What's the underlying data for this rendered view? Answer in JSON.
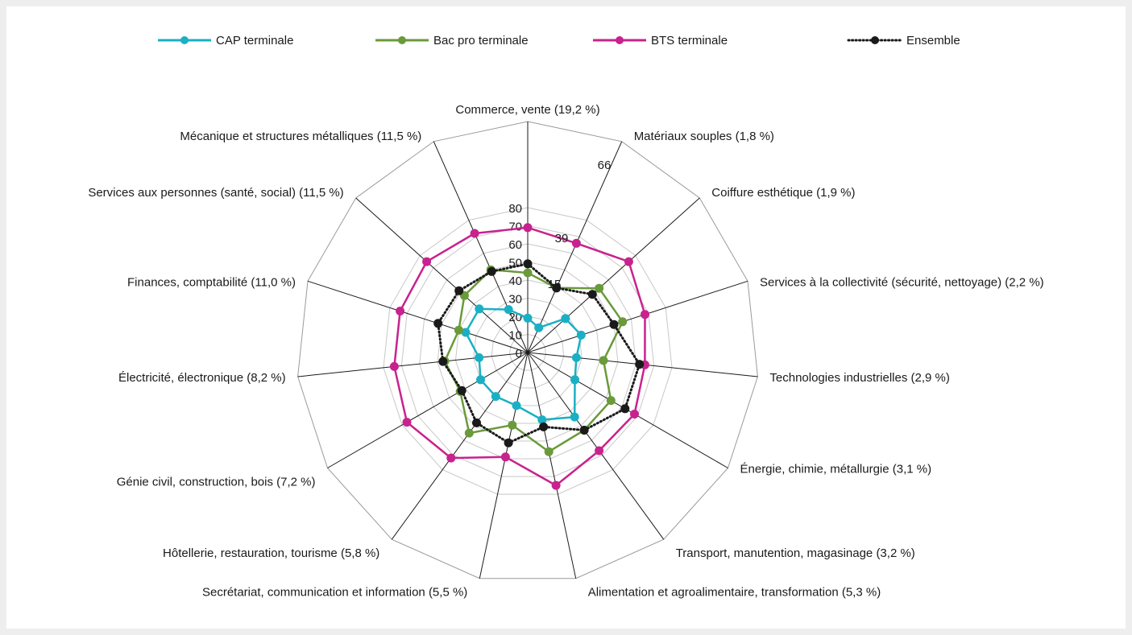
{
  "chart_data": {
    "type": "radar",
    "title": "",
    "rlim": [
      0,
      80
    ],
    "ticks": [
      0,
      10,
      20,
      30,
      40,
      50,
      60,
      70,
      80
    ],
    "categories": [
      "Commerce, vente (19,2 %)",
      "Matériaux souples (1,8 %)",
      "Coiffure esthétique (1,9 %)",
      "Services à la collectivité (sécurité, nettoyage) (2,2 %)",
      "Technologies industrielles (2,9 %)",
      "Énergie, chimie, métallurgie (3,1 %)",
      "Transport, manutention, magasinage (3,2 %)",
      "Alimentation et agroalimentaire, transformation (5,3 %)",
      "Secrétariat, communication et information (5,5 %)",
      "Hôtellerie, restauration, tourisme (5,8 %)",
      "Génie civil, construction, bois (7,2 %)",
      "Électricité, électronique (8,2 %)",
      "Finances, comptabilité (11,0 %)",
      "Services aux personnes (santé, social) (11,5 %)",
      "Mécanique et structures métalliques (11,5 %)"
    ],
    "series": [
      {
        "name": "CAP terminale",
        "color": "#1ab0c4",
        "style": "solid",
        "values": [
          19,
          15,
          28,
          31,
          27,
          30,
          44,
          38,
          30,
          30,
          30,
          27,
          36,
          36,
          26
        ]
      },
      {
        "name": "Bac pro terminale",
        "color": "#6a9a3a",
        "style": "solid",
        "values": [
          44,
          39,
          53,
          55,
          42,
          53,
          53,
          56,
          41,
          55,
          43,
          46,
          40,
          47,
          50
        ]
      },
      {
        "name": "BTS terminale",
        "color": "#c8228e",
        "style": "solid",
        "values": [
          69,
          66,
          75,
          68,
          65,
          68,
          67,
          75,
          59,
          72,
          77,
          74,
          74,
          75,
          72
        ]
      },
      {
        "name": "Ensemble",
        "color": "#1a1a1a",
        "style": "dotted",
        "values": [
          49,
          39,
          48,
          50,
          62,
          62,
          53,
          42,
          51,
          48,
          42,
          47,
          52,
          51,
          49
        ]
      }
    ],
    "annotations": [
      "39",
      "66",
      "15"
    ],
    "legend_position": "top",
    "grid": true
  }
}
